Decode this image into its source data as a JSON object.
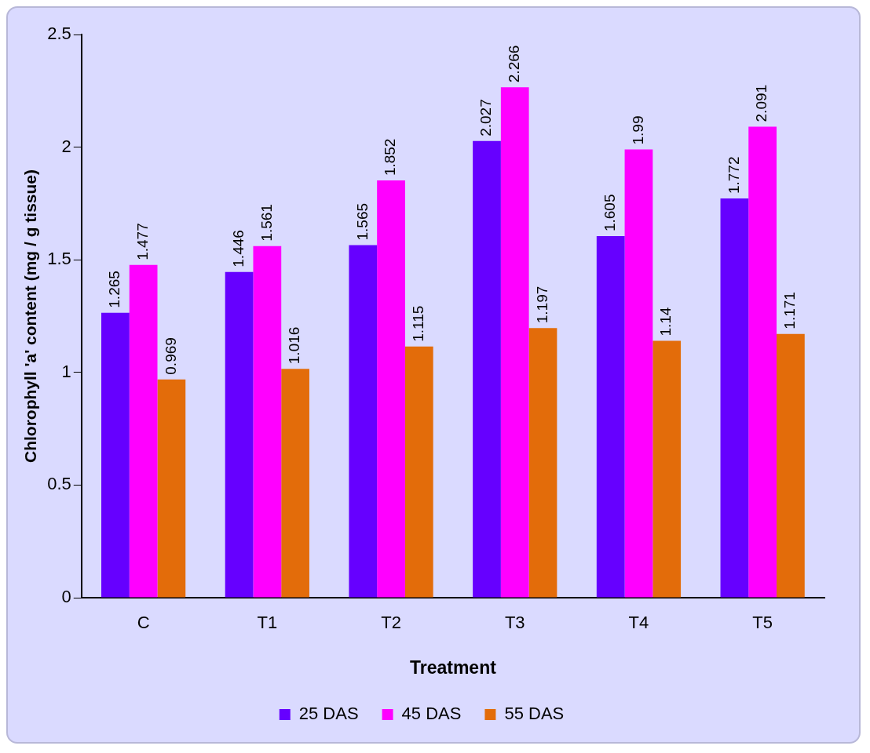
{
  "chart_data": {
    "type": "bar",
    "xlabel": "Treatment",
    "ylabel": "Chlorophyll 'a' content (mg / g tissue)",
    "categories": [
      "C",
      "T1",
      "T2",
      "T3",
      "T4",
      "T5"
    ],
    "series": [
      {
        "name": "25 DAS",
        "color": "#6600ff",
        "values": [
          1.265,
          1.446,
          1.565,
          2.027,
          1.605,
          1.772
        ]
      },
      {
        "name": "45 DAS",
        "color": "#ff00ff",
        "values": [
          1.477,
          1.561,
          1.852,
          2.266,
          1.99,
          2.091
        ]
      },
      {
        "name": "55 DAS",
        "color": "#e36c0a",
        "values": [
          0.969,
          1.016,
          1.115,
          1.197,
          1.14,
          1.171
        ]
      }
    ],
    "ylim": [
      0,
      2.5
    ],
    "yticks": [
      0,
      0.5,
      1,
      1.5,
      2,
      2.5
    ],
    "grid": false,
    "legend": "bottom",
    "data_labels": true
  }
}
